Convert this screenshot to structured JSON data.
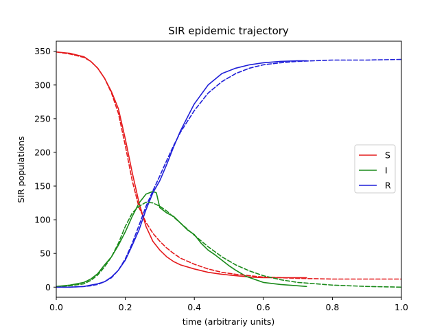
{
  "chart_data": {
    "type": "line",
    "title": "SIR epidemic trajectory",
    "xlabel": "time (arbitrariy units)",
    "ylabel": "SIR populations",
    "xlim": [
      0.0,
      1.0
    ],
    "ylim": [
      -15,
      365
    ],
    "xticks": [
      0.0,
      0.2,
      0.4,
      0.6,
      0.8,
      1.0
    ],
    "xtick_labels": [
      "0.0",
      "0.2",
      "0.4",
      "0.6",
      "0.8",
      "1.0"
    ],
    "yticks": [
      0,
      50,
      100,
      150,
      200,
      250,
      300,
      350
    ],
    "ytick_labels": [
      "0",
      "50",
      "100",
      "150",
      "200",
      "250",
      "300",
      "350"
    ],
    "grid": false,
    "legend_position": "center-right",
    "legend": [
      "S",
      "I",
      "R"
    ],
    "colors": {
      "S": "#e41a1c",
      "I": "#1a8a1a",
      "R": "#1f1fd8"
    },
    "series": [
      {
        "name": "S",
        "style": "solid",
        "color": "#e41a1c",
        "x": [
          0.0,
          0.04,
          0.08,
          0.1,
          0.12,
          0.14,
          0.16,
          0.18,
          0.2,
          0.22,
          0.24,
          0.26,
          0.28,
          0.3,
          0.32,
          0.34,
          0.36,
          0.4,
          0.44,
          0.48,
          0.52,
          0.56,
          0.6,
          0.65,
          0.7,
          0.725
        ],
        "values": [
          349,
          347,
          342,
          335,
          325,
          310,
          290,
          265,
          220,
          170,
          125,
          90,
          68,
          55,
          45,
          38,
          33,
          27,
          22,
          19,
          17,
          15,
          14,
          14,
          14,
          14
        ]
      },
      {
        "name": "I",
        "style": "solid",
        "color": "#1a8a1a",
        "x": [
          0.0,
          0.04,
          0.08,
          0.1,
          0.12,
          0.14,
          0.16,
          0.18,
          0.2,
          0.22,
          0.24,
          0.26,
          0.28,
          0.29,
          0.3,
          0.32,
          0.34,
          0.36,
          0.38,
          0.4,
          0.42,
          0.44,
          0.46,
          0.48,
          0.5,
          0.52,
          0.55,
          0.6,
          0.65,
          0.7,
          0.725
        ],
        "values": [
          1,
          3,
          7,
          12,
          20,
          33,
          45,
          62,
          82,
          105,
          125,
          138,
          142,
          140,
          118,
          110,
          105,
          95,
          85,
          78,
          65,
          55,
          48,
          40,
          32,
          25,
          16,
          7,
          4,
          2,
          1
        ]
      },
      {
        "name": "R",
        "style": "solid",
        "color": "#1f1fd8",
        "x": [
          0.0,
          0.04,
          0.08,
          0.1,
          0.12,
          0.14,
          0.16,
          0.18,
          0.2,
          0.22,
          0.24,
          0.26,
          0.28,
          0.3,
          0.32,
          0.34,
          0.36,
          0.38,
          0.4,
          0.44,
          0.48,
          0.52,
          0.56,
          0.6,
          0.65,
          0.7,
          0.725
        ],
        "values": [
          0,
          0,
          1,
          3,
          5,
          8,
          15,
          25,
          40,
          62,
          85,
          115,
          140,
          158,
          182,
          208,
          232,
          252,
          272,
          300,
          317,
          325,
          330,
          333,
          335,
          336,
          336
        ]
      },
      {
        "name": "S (model)",
        "style": "dashed",
        "color": "#e41a1c",
        "x": [
          0.0,
          0.04,
          0.08,
          0.1,
          0.12,
          0.14,
          0.16,
          0.18,
          0.2,
          0.22,
          0.24,
          0.26,
          0.28,
          0.3,
          0.32,
          0.34,
          0.36,
          0.4,
          0.44,
          0.48,
          0.52,
          0.56,
          0.6,
          0.65,
          0.7,
          0.8,
          0.9,
          1.0
        ],
        "values": [
          349,
          346,
          341,
          335,
          325,
          310,
          288,
          258,
          210,
          158,
          118,
          96,
          80,
          68,
          58,
          50,
          43,
          34,
          27,
          22,
          19,
          17,
          15,
          14,
          13,
          12,
          12,
          12
        ]
      },
      {
        "name": "I (model)",
        "style": "dashed",
        "color": "#1a8a1a",
        "x": [
          0.0,
          0.04,
          0.08,
          0.1,
          0.12,
          0.14,
          0.16,
          0.18,
          0.2,
          0.22,
          0.24,
          0.26,
          0.28,
          0.3,
          0.32,
          0.34,
          0.36,
          0.4,
          0.44,
          0.48,
          0.52,
          0.56,
          0.6,
          0.65,
          0.7,
          0.8,
          0.9,
          1.0
        ],
        "values": [
          1,
          2,
          5,
          10,
          18,
          30,
          45,
          65,
          90,
          110,
          120,
          126,
          125,
          120,
          113,
          104,
          95,
          77,
          60,
          45,
          33,
          24,
          17,
          11,
          7,
          3,
          1,
          0
        ]
      },
      {
        "name": "R (model)",
        "style": "dashed",
        "color": "#1f1fd8",
        "x": [
          0.0,
          0.04,
          0.08,
          0.1,
          0.12,
          0.14,
          0.16,
          0.18,
          0.2,
          0.22,
          0.24,
          0.26,
          0.28,
          0.3,
          0.32,
          0.34,
          0.36,
          0.4,
          0.44,
          0.48,
          0.52,
          0.56,
          0.6,
          0.65,
          0.7,
          0.8,
          0.9,
          1.0
        ],
        "values": [
          0,
          0,
          1,
          2,
          4,
          8,
          14,
          25,
          42,
          65,
          92,
          120,
          143,
          165,
          188,
          210,
          230,
          262,
          288,
          305,
          317,
          325,
          330,
          333,
          335,
          337,
          337,
          338
        ]
      }
    ]
  }
}
